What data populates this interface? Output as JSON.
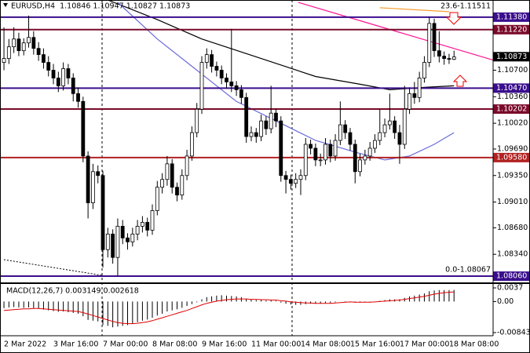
{
  "chart_data": [
    {
      "type": "candlestick",
      "title": "EURUSD,H4  1.10846 1.10947 1.10827 1.10873",
      "annotations": [
        "23.6-1.11511",
        "0.0-1.08067"
      ],
      "xlim": [
        -0.8,
        98.9
      ],
      "ylim": [
        1.0798,
        1.116
      ],
      "yticks": [
        {
          "value": 1.107,
          "label": "1.10700"
        },
        {
          "value": 1.1036,
          "label": "1.10360"
        },
        {
          "value": 1.1002,
          "label": "1.10020"
        },
        {
          "value": 1.0969,
          "label": "1.09690"
        },
        {
          "value": 1.0935,
          "label": "1.09350"
        },
        {
          "value": 1.0901,
          "label": "1.09010"
        },
        {
          "value": 1.0868,
          "label": "1.08680"
        },
        {
          "value": 1.0834,
          "label": "1.08340"
        }
      ],
      "levels": [
        {
          "value": 1.1138,
          "label": "1.11380",
          "color": "#3a0e8c"
        },
        {
          "value": 1.1122,
          "label": "1.11220",
          "color": "#7a0a2a"
        },
        {
          "value": 1.1047,
          "label": "1.10470",
          "color": "#3a0e8c"
        },
        {
          "value": 1.10202,
          "label": "1.10202",
          "color": "#7a0a2a"
        },
        {
          "value": 1.0958,
          "label": "1.09580",
          "color": "#b22222"
        },
        {
          "value": 1.0806,
          "label": "1.08060",
          "color": "#3a0e8c"
        }
      ],
      "last_price": 1.10873,
      "up_color": "#ffffff",
      "down_color": "#000000",
      "ohlc": [
        [
          1.108,
          1.1125,
          1.107,
          1.1085
        ],
        [
          1.1085,
          1.111,
          1.1078,
          1.11
        ],
        [
          1.11,
          1.1125,
          1.1092,
          1.111
        ],
        [
          1.111,
          1.1118,
          1.1088,
          1.1095
        ],
        [
          1.1095,
          1.1111,
          1.1089,
          1.1105
        ],
        [
          1.1105,
          1.114,
          1.1099,
          1.1112
        ],
        [
          1.1112,
          1.112,
          1.109,
          1.1098
        ],
        [
          1.1098,
          1.1106,
          1.1082,
          1.109
        ],
        [
          1.109,
          1.1098,
          1.1072,
          1.108
        ],
        [
          1.108,
          1.1088,
          1.1062,
          1.107
        ],
        [
          1.107,
          1.1078,
          1.1052,
          1.106
        ],
        [
          1.106,
          1.1068,
          1.1042,
          1.105
        ],
        [
          1.105,
          1.108,
          1.1044,
          1.1072
        ],
        [
          1.1072,
          1.1078,
          1.1052,
          1.106
        ],
        [
          1.106,
          1.1066,
          1.103,
          1.104
        ],
        [
          1.104,
          1.1048,
          1.1022,
          1.103
        ],
        [
          1.103,
          1.1036,
          1.0952,
          1.096
        ],
        [
          1.096,
          1.0966,
          1.088,
          1.09
        ],
        [
          1.09,
          1.095,
          1.0892,
          1.094
        ],
        [
          1.094,
          1.0948,
          1.0925,
          1.0935
        ],
        [
          1.0935,
          1.0941,
          1.0817,
          1.084
        ],
        [
          1.084,
          1.0868,
          1.083,
          1.086
        ],
        [
          1.086,
          1.0866,
          1.0822,
          1.083
        ],
        [
          1.083,
          1.088,
          1.0806,
          1.087
        ],
        [
          1.087,
          1.0878,
          1.0847,
          1.0855
        ],
        [
          1.0855,
          1.0861,
          1.084,
          1.085
        ],
        [
          1.085,
          1.0868,
          1.0844,
          1.086
        ],
        [
          1.086,
          1.0878,
          1.0852,
          1.087
        ],
        [
          1.087,
          1.0883,
          1.0862,
          1.0875
        ],
        [
          1.0875,
          1.0881,
          1.0857,
          1.0865
        ],
        [
          1.0865,
          1.0898,
          1.0859,
          1.089
        ],
        [
          1.089,
          1.0928,
          1.0884,
          1.092
        ],
        [
          1.092,
          1.0938,
          1.0912,
          1.093
        ],
        [
          1.093,
          1.096,
          1.0922,
          1.095
        ],
        [
          1.095,
          1.0956,
          1.0912,
          1.092
        ],
        [
          1.092,
          1.0926,
          1.0902,
          1.091
        ],
        [
          1.091,
          1.0943,
          1.0904,
          1.0935
        ],
        [
          1.0935,
          1.0968,
          1.0929,
          1.096
        ],
        [
          1.096,
          1.0998,
          1.0954,
          1.099
        ],
        [
          1.099,
          1.1028,
          1.0984,
          1.102
        ],
        [
          1.102,
          1.1088,
          1.1014,
          1.108
        ],
        [
          1.108,
          1.1098,
          1.1072,
          1.109
        ],
        [
          1.109,
          1.1096,
          1.1067,
          1.1075
        ],
        [
          1.1075,
          1.1081,
          1.1062,
          1.107
        ],
        [
          1.107,
          1.1076,
          1.1052,
          1.106
        ],
        [
          1.106,
          1.1066,
          1.1047,
          1.1055
        ],
        [
          1.1055,
          1.1123,
          1.1042,
          1.105
        ],
        [
          1.105,
          1.1056,
          1.1037,
          1.1045
        ],
        [
          1.1045,
          1.1051,
          1.1027,
          1.1035
        ],
        [
          1.1035,
          1.1041,
          1.0977,
          1.0985
        ],
        [
          1.0985,
          1.0998,
          1.0979,
          1.099
        ],
        [
          1.099,
          1.0996,
          1.0977,
          1.0985
        ],
        [
          1.0985,
          1.1013,
          1.0979,
          1.1005
        ],
        [
          1.1005,
          1.1011,
          1.0987,
          1.0995
        ],
        [
          1.0995,
          1.105,
          1.0989,
          1.1015
        ],
        [
          1.1015,
          1.1021,
          1.0997,
          1.1005
        ],
        [
          1.1005,
          1.1011,
          1.0927,
          1.0935
        ],
        [
          1.0935,
          1.0941,
          1.0912,
          1.093
        ],
        [
          1.093,
          1.0936,
          1.0917,
          1.0925
        ],
        [
          1.0925,
          1.0938,
          1.0919,
          1.093
        ],
        [
          1.093,
          1.0943,
          1.091,
          1.0935
        ],
        [
          1.0935,
          1.0983,
          1.0929,
          1.0975
        ],
        [
          1.0975,
          1.0981,
          1.0962,
          1.097
        ],
        [
          1.097,
          1.0976,
          1.0947,
          1.0955
        ],
        [
          1.0955,
          1.0963,
          1.0947,
          1.0955
        ],
        [
          1.0955,
          1.0983,
          1.0949,
          1.0975
        ],
        [
          1.0975,
          1.0981,
          1.0952,
          1.096
        ],
        [
          1.096,
          1.0988,
          1.0954,
          1.098
        ],
        [
          1.098,
          1.103,
          1.0974,
          1.1
        ],
        [
          1.1,
          1.1006,
          1.0982,
          1.099
        ],
        [
          1.099,
          1.0996,
          1.0967,
          1.0975
        ],
        [
          1.0975,
          1.0981,
          1.0925,
          1.094
        ],
        [
          1.094,
          1.0963,
          1.0934,
          1.0955
        ],
        [
          1.0955,
          1.0968,
          1.0949,
          1.096
        ],
        [
          1.096,
          1.0978,
          1.0954,
          1.097
        ],
        [
          1.097,
          1.0988,
          1.0964,
          1.098
        ],
        [
          1.098,
          1.102,
          1.0974,
          1.099
        ],
        [
          1.099,
          1.1008,
          1.0984,
          1.1
        ],
        [
          1.1,
          1.104,
          1.0994,
          1.1005
        ],
        [
          1.1005,
          1.1011,
          1.0982,
          1.099
        ],
        [
          1.099,
          1.1,
          1.095,
          1.0975
        ],
        [
          1.0975,
          1.105,
          1.0969,
          1.102
        ],
        [
          1.102,
          1.1048,
          1.1014,
          1.104
        ],
        [
          1.104,
          1.1055,
          1.1027,
          1.1035
        ],
        [
          1.1035,
          1.1068,
          1.1029,
          1.106
        ],
        [
          1.106,
          1.1088,
          1.1054,
          1.108
        ],
        [
          1.108,
          1.1138,
          1.1074,
          1.113
        ],
        [
          1.113,
          1.1136,
          1.1087,
          1.1095
        ],
        [
          1.1095,
          1.112,
          1.108,
          1.1088
        ],
        [
          1.1088,
          1.1094,
          1.1077,
          1.1085
        ],
        [
          1.1085,
          1.1091,
          1.1078,
          1.1084
        ],
        [
          1.1084,
          1.1095,
          1.1083,
          1.1087
        ]
      ],
      "overlays": [
        {
          "color": "#000000",
          "x": [
            21,
            31,
            40,
            52,
            63,
            72,
            78,
            85,
            91
          ],
          "values": [
            1.116,
            1.1135,
            1.111,
            1.1085,
            1.1062,
            1.1052,
            1.1045,
            1.1048,
            1.105
          ]
        },
        {
          "color": "#6a6ad8",
          "x": [
            23,
            31,
            39,
            47,
            55,
            63,
            71,
            77,
            82,
            87,
            91
          ],
          "values": [
            1.1157,
            1.111,
            1.107,
            1.103,
            1.1005,
            1.098,
            1.0965,
            1.0955,
            1.096,
            1.0975,
            1.099
          ]
        },
        {
          "color": "#ff1493",
          "x": [
            59.5,
            98.9
          ],
          "values": [
            1.1157,
            1.1083
          ]
        },
        {
          "color": "#f5a030",
          "x": [
            76,
            90
          ],
          "values": [
            1.115,
            1.1145
          ]
        }
      ]
    },
    {
      "type": "macd",
      "label": "MACD(12,26,7) 0.003149 0.002618",
      "xlim": [
        -0.8,
        98.9
      ],
      "ylim": [
        -0.008434,
        0.0037
      ],
      "yticks": [
        0.0037,
        {
          "value": 0,
          "label": "0.00"
        },
        -0.008434
      ],
      "categories": [
        "2 Mar 2022",
        null,
        null,
        null,
        null,
        null,
        null,
        null,
        null,
        null,
        "3 Mar 16:00",
        null,
        null,
        null,
        null,
        null,
        null,
        null,
        null,
        null,
        "7 Mar 00:00",
        null,
        null,
        null,
        null,
        null,
        null,
        null,
        null,
        null,
        "8 Mar 08:00",
        null,
        null,
        null,
        null,
        null,
        null,
        null,
        null,
        null,
        "9 Mar 16:00",
        null,
        null,
        null,
        null,
        null,
        null,
        null,
        null,
        null,
        "11 Mar 00:00",
        null,
        null,
        null,
        null,
        null,
        null,
        null,
        null,
        null,
        "14 Mar 08:00",
        null,
        null,
        null,
        null,
        null,
        null,
        null,
        null,
        null,
        "15 Mar 16:00",
        null,
        null,
        null,
        null,
        null,
        null,
        null,
        null,
        null,
        "17 Mar 00:00",
        null,
        null,
        null,
        null,
        null,
        null,
        null,
        null,
        null,
        "18 Mar 08:00",
        null
      ],
      "series": [
        {
          "type": "bar",
          "color": "#000000",
          "values": [
            -0.0018,
            -0.0016,
            -0.0015,
            -0.0016,
            -0.0017,
            -0.0016,
            -0.0018,
            -0.002,
            -0.0022,
            -0.0024,
            -0.0026,
            -0.0028,
            -0.0027,
            -0.0029,
            -0.0031,
            -0.0033,
            -0.004,
            -0.005,
            -0.0052,
            -0.0054,
            -0.0064,
            -0.0066,
            -0.007,
            -0.0068,
            -0.0066,
            -0.0064,
            -0.006,
            -0.0056,
            -0.0052,
            -0.0049,
            -0.0044,
            -0.0038,
            -0.0033,
            -0.0027,
            -0.0024,
            -0.0021,
            -0.0017,
            -0.0012,
            -0.0007,
            -0.0002,
            0.0006,
            0.0012,
            0.0014,
            0.0016,
            0.0017,
            0.0016,
            0.0015,
            0.0014,
            0.0012,
            0.0008,
            0.0006,
            0.0004,
            0.0004,
            0.0003,
            0.0003,
            0.0002,
            -0.0003,
            -0.0006,
            -0.0008,
            -0.0009,
            -0.0009,
            -0.0007,
            -0.0006,
            -0.0006,
            -0.0005,
            -0.0004,
            -0.0004,
            -0.0002,
            0.0,
            0.0001,
            0.0,
            -0.0003,
            -0.0003,
            -0.0002,
            -0.0001,
            0.0,
            0.0002,
            0.0004,
            0.0006,
            0.0006,
            0.0006,
            0.001,
            0.0014,
            0.0016,
            0.0019,
            0.0022,
            0.0028,
            0.003,
            0.0031,
            0.0031,
            0.0031,
            0.003149
          ]
        },
        {
          "type": "line",
          "color": "#e00000",
          "values": [
            -0.0024,
            -0.0023,
            -0.0022,
            -0.0021,
            -0.002,
            -0.002,
            -0.0019,
            -0.0019,
            -0.002,
            -0.0021,
            -0.0022,
            -0.0023,
            -0.0024,
            -0.0025,
            -0.0026,
            -0.0027,
            -0.003,
            -0.0034,
            -0.0038,
            -0.0042,
            -0.0046,
            -0.005,
            -0.0054,
            -0.0057,
            -0.0059,
            -0.006,
            -0.006,
            -0.0059,
            -0.0057,
            -0.0055,
            -0.0052,
            -0.0048,
            -0.0044,
            -0.004,
            -0.0036,
            -0.0032,
            -0.0028,
            -0.0024,
            -0.0019,
            -0.0014,
            -0.0009,
            -0.0005,
            -0.0002,
            0.0001,
            0.0003,
            0.0005,
            0.0006,
            0.0007,
            0.0007,
            0.0007,
            0.0006,
            0.0006,
            0.0005,
            0.0005,
            0.0004,
            0.0004,
            0.0002,
            0.0001,
            -0.0001,
            -0.0002,
            -0.0003,
            -0.0004,
            -0.0004,
            -0.0005,
            -0.0005,
            -0.0005,
            -0.0005,
            -0.0004,
            -0.0003,
            -0.0002,
            -0.0001,
            -0.0002,
            -0.0002,
            -0.0002,
            -0.0002,
            -0.0001,
            0.0,
            0.0001,
            0.0002,
            0.0003,
            0.0004,
            0.0006,
            0.0008,
            0.001,
            0.0012,
            0.0014,
            0.0017,
            0.002,
            0.0022,
            0.0024,
            0.0025,
            0.002618
          ]
        }
      ]
    }
  ]
}
